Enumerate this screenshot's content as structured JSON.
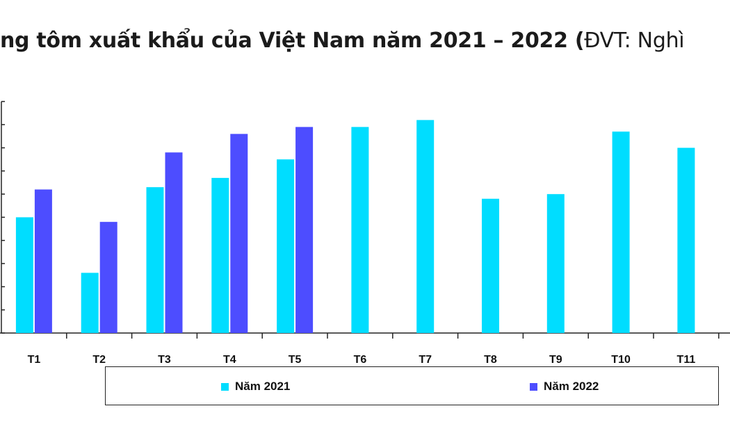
{
  "title": {
    "bold_part": "ng tôm xuất khẩu của Việt Nam năm 2021 – 2022 (",
    "unit_part": "ĐVT: Nghì"
  },
  "chart_data": {
    "type": "bar",
    "categories": [
      "T1",
      "T2",
      "T3",
      "T4",
      "T5",
      "T6",
      "T7",
      "T8",
      "T9",
      "T10",
      "T11"
    ],
    "series": [
      {
        "name": "Năm 2021",
        "color": "#00DDFF",
        "values": [
          50,
          26,
          63,
          67,
          75,
          89,
          92,
          58,
          60,
          87,
          80
        ]
      },
      {
        "name": "Năm 2022",
        "color": "#4D4DFF",
        "values": [
          62,
          48,
          78,
          86,
          89,
          null,
          null,
          null,
          null,
          null,
          null
        ]
      }
    ],
    "ylim": [
      0,
      100
    ],
    "ytick_count": 11,
    "legend_position": "bottom"
  }
}
